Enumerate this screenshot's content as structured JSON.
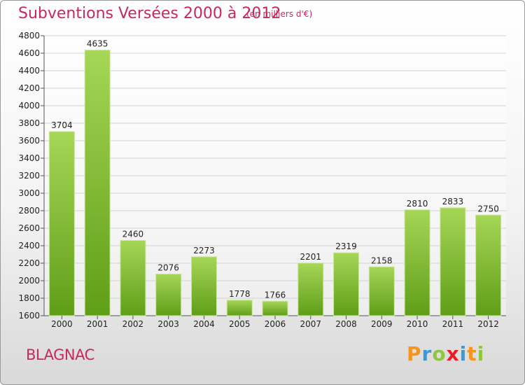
{
  "header": {
    "title": "Subventions Versées 2000 à 2012",
    "subtitle": "(en milliers d'€)"
  },
  "footer": {
    "commune": "BLAGNAC",
    "logo_letters": [
      {
        "char": "P",
        "color": "#f7941d"
      },
      {
        "char": "r",
        "color": "#3a9ad9"
      },
      {
        "char": "o",
        "color": "#8dc63f"
      },
      {
        "char": "x",
        "color": "#ed1c24"
      },
      {
        "char": "i",
        "color": "#3a9ad9"
      },
      {
        "char": "t",
        "color": "#f7941d"
      },
      {
        "char": "i",
        "color": "#8dc63f"
      }
    ]
  },
  "colors": {
    "title": "#c8285a",
    "bar_top": "#a6d656",
    "bar_bottom": "#5f9e18",
    "grid": "#d2d2d2"
  },
  "chart_data": {
    "type": "bar",
    "categories": [
      "2000",
      "2001",
      "2002",
      "2003",
      "2004",
      "2005",
      "2006",
      "2007",
      "2008",
      "2009",
      "2010",
      "2011",
      "2012"
    ],
    "values": [
      3704,
      4635,
      2460,
      2076,
      2273,
      1778,
      1766,
      2201,
      2319,
      2158,
      2810,
      2833,
      2750
    ],
    "ylim": [
      1600,
      4800
    ],
    "yticks": [
      1600,
      1800,
      2000,
      2200,
      2400,
      2600,
      2800,
      3000,
      3200,
      3400,
      3600,
      3800,
      4000,
      4200,
      4400,
      4600,
      4800
    ],
    "grid": true,
    "legend": "none"
  }
}
